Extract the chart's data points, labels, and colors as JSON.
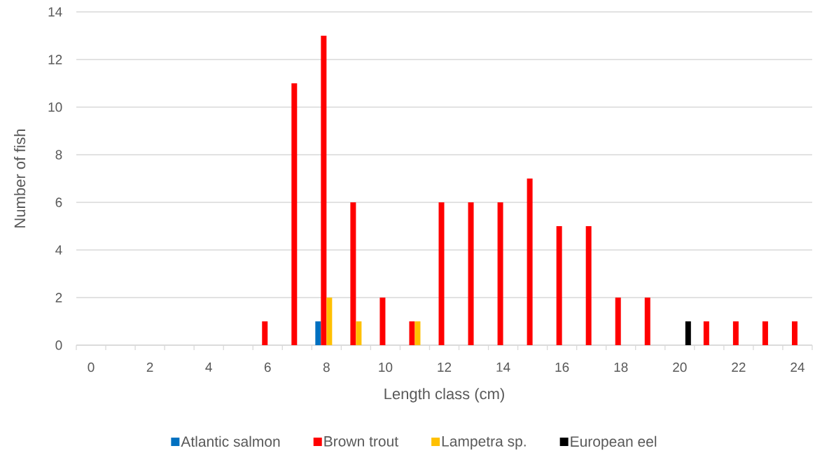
{
  "chart_data": {
    "type": "bar",
    "xlabel": "Length class (cm)",
    "ylabel": "Number of fish",
    "categories": [
      "0",
      null,
      "2",
      null,
      "4",
      null,
      "6",
      null,
      "8",
      null,
      "10",
      null,
      "12",
      null,
      "14",
      null,
      "16",
      null,
      "18",
      null,
      "20",
      null,
      "22",
      null,
      "24"
    ],
    "series": [
      {
        "name": "Atlantic salmon",
        "color": "#0070c0",
        "values": [
          null,
          null,
          null,
          null,
          null,
          null,
          null,
          null,
          1,
          null,
          null,
          null,
          null,
          null,
          null,
          null,
          null,
          null,
          null,
          null,
          null,
          null,
          null,
          null,
          null
        ]
      },
      {
        "name": "Brown trout",
        "color": "#ff0000",
        "values": [
          null,
          null,
          null,
          null,
          null,
          null,
          1,
          11,
          13,
          6,
          2,
          1,
          6,
          6,
          6,
          7,
          5,
          5,
          2,
          2,
          null,
          1,
          1,
          1,
          1
        ]
      },
      {
        "name": "Lampetra sp.",
        "color": "#ffc000",
        "values": [
          null,
          null,
          null,
          null,
          null,
          null,
          null,
          null,
          2,
          1,
          null,
          1,
          null,
          null,
          null,
          null,
          null,
          null,
          null,
          null,
          null,
          null,
          null,
          null,
          null
        ]
      },
      {
        "name": "European eel",
        "color": "#000000",
        "values": [
          null,
          null,
          null,
          null,
          null,
          null,
          null,
          null,
          null,
          null,
          null,
          null,
          null,
          null,
          null,
          null,
          null,
          null,
          null,
          null,
          1,
          null,
          null,
          null,
          null
        ]
      }
    ],
    "ylim": [
      0,
      14
    ],
    "yticks": [
      0,
      2,
      4,
      6,
      8,
      10,
      12,
      14
    ],
    "grid": "y",
    "legend": "bottom"
  }
}
